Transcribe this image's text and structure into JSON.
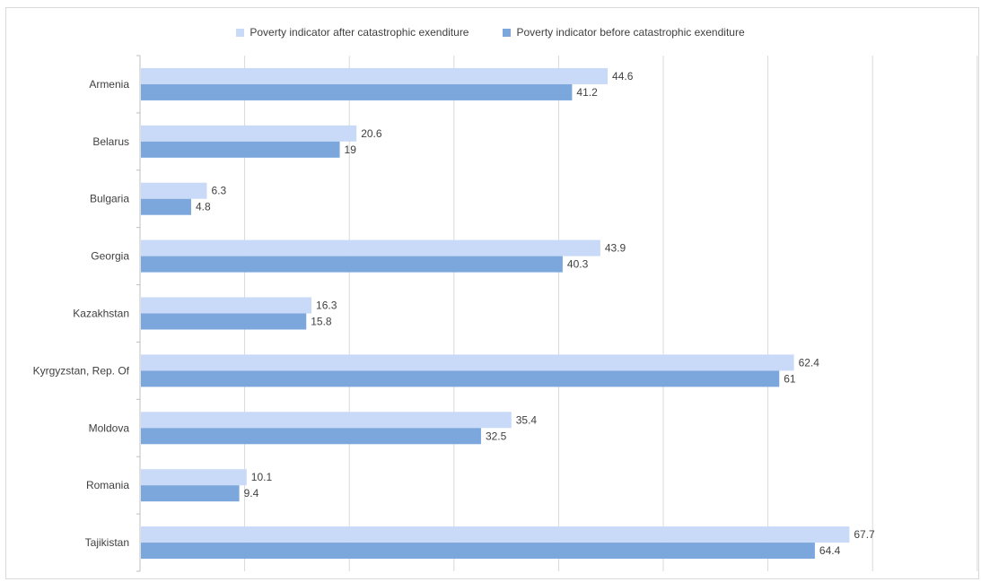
{
  "chart_data": {
    "type": "bar",
    "orientation": "horizontal",
    "title": "",
    "xlabel": "",
    "ylabel": "",
    "xlim": [
      0,
      80
    ],
    "grid": true,
    "legend_position": "top",
    "categories": [
      "Armenia",
      "Belarus",
      "Bulgaria",
      "Georgia",
      "Kazakhstan",
      "Kyrgyzstan, Rep. Of",
      "Moldova",
      "Romania",
      "Tajikistan"
    ],
    "series": [
      {
        "name": "Poverty indicator after catastrophic exenditure",
        "color": "#c9daf8",
        "values": [
          44.6,
          20.6,
          6.3,
          43.9,
          16.3,
          62.4,
          35.4,
          10.1,
          67.7
        ],
        "labels": [
          "44.6",
          "20.6",
          "6.3",
          "43.9",
          "16.3",
          "62.4",
          "35.4",
          "10.1",
          "67.7"
        ]
      },
      {
        "name": "Poverty indicator before catastrophic exenditure",
        "color": "#7ba7dc",
        "values": [
          41.2,
          19,
          4.8,
          40.3,
          15.8,
          61,
          32.5,
          9.4,
          64.4
        ],
        "labels": [
          "41.2",
          "19",
          "4.8",
          "40.3",
          "15.8",
          "61",
          "32.5",
          "9.4",
          "64.4"
        ]
      }
    ]
  }
}
